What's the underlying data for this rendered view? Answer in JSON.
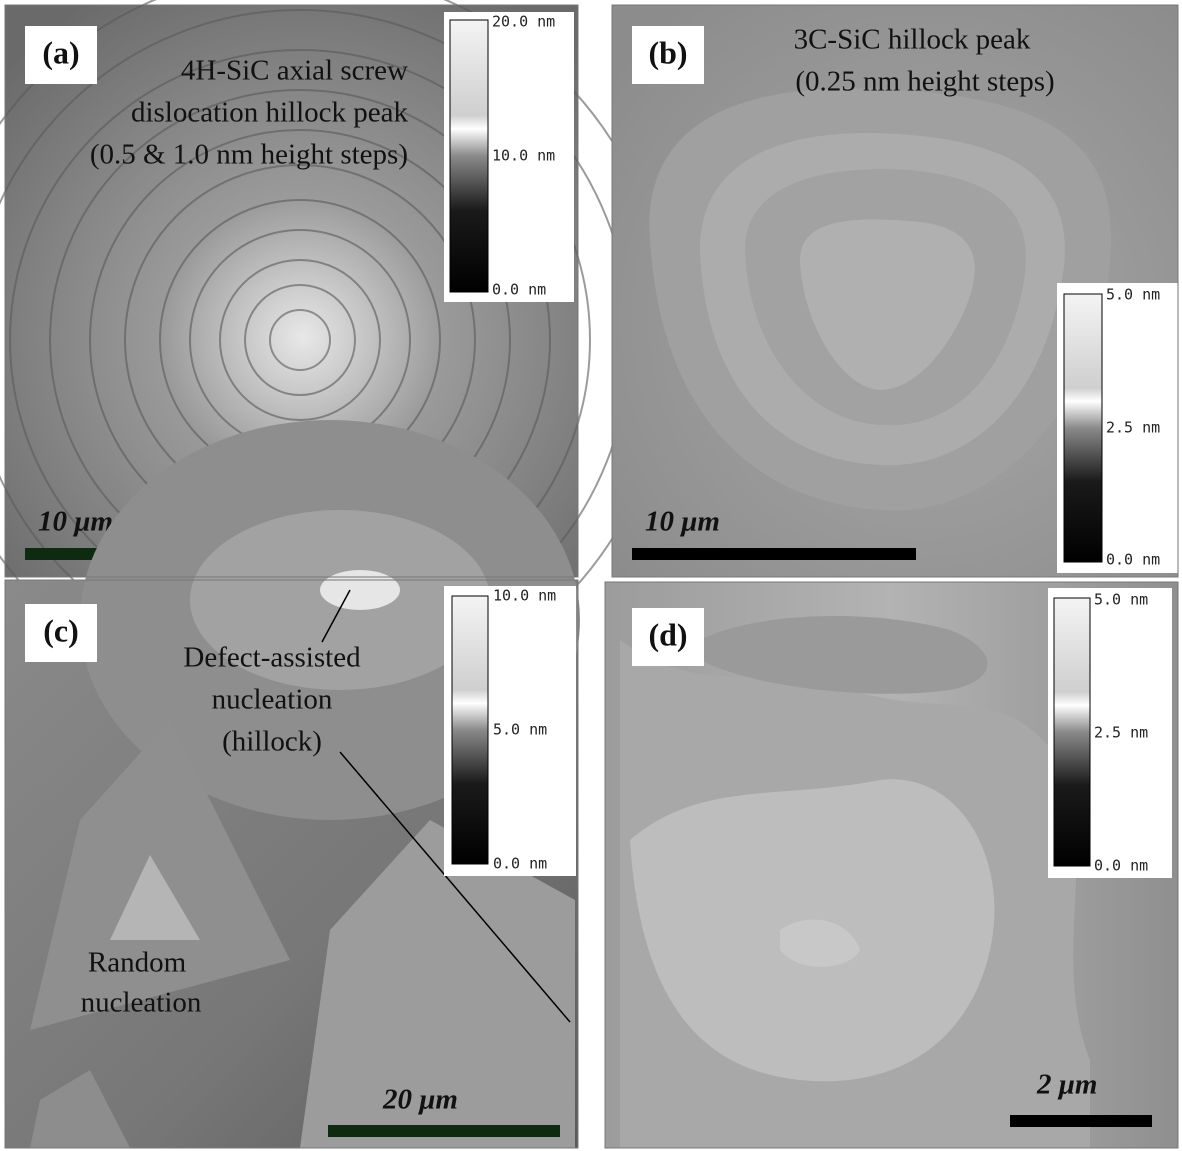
{
  "panels": [
    {
      "label": "(a)",
      "caption": [
        "4H-SiC axial screw",
        "dislocation hillock peak",
        "(0.5 & 1.0 nm height steps)"
      ],
      "scale_bar": "10 μm",
      "colorbar": [
        "20.0 nm",
        "10.0 nm",
        "0.0 nm"
      ]
    },
    {
      "label": "(b)",
      "caption": [
        "3C-SiC hillock peak",
        "(0.25 nm height steps)"
      ],
      "scale_bar": "10 μm",
      "colorbar": [
        "5.0 nm",
        "2.5 nm",
        "0.0 nm"
      ]
    },
    {
      "label": "(c)",
      "caption": [
        "Defect-assisted",
        "nucleation",
        "(hillock)"
      ],
      "caption2": [
        "Random",
        "nucleation"
      ],
      "scale_bar": "20 μm",
      "colorbar": [
        "10.0 nm",
        "5.0 nm",
        "0.0 nm"
      ]
    },
    {
      "label": "(d)",
      "scale_bar": "2 μm",
      "colorbar": [
        "5.0 nm",
        "2.5 nm",
        "0.0 nm"
      ]
    }
  ]
}
